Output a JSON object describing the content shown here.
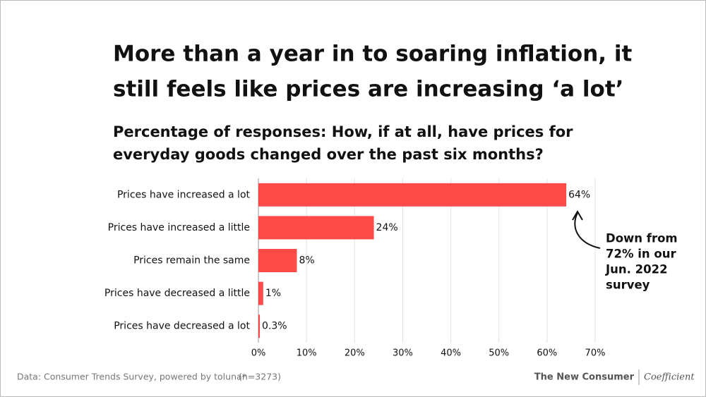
{
  "chart_data": {
    "type": "bar",
    "orientation": "horizontal",
    "title": [
      "More than a year in to soaring inflation, it",
      "still feels like prices are increasing ‘a lot’"
    ],
    "subtitle": [
      "Percentage of responses: How, if at all, have prices for",
      "everyday goods changed over the past six months?"
    ],
    "categories": [
      "Prices have increased a lot",
      "Prices have increased a little",
      "Prices remain the same",
      "Prices have decreased a little",
      "Prices have decreased a lot"
    ],
    "values": [
      64,
      24,
      8,
      1,
      0.3
    ],
    "value_labels": [
      "64%",
      "24%",
      "8%",
      "1%",
      "0.3%"
    ],
    "color": "#ff4a4a",
    "xlim": [
      0,
      70
    ],
    "xticks": [
      {
        "value": 0,
        "label": "0%"
      },
      {
        "value": 10,
        "label": "10%"
      },
      {
        "value": 20,
        "label": "20%"
      },
      {
        "value": 30,
        "label": "30%"
      },
      {
        "value": 40,
        "label": "40%"
      },
      {
        "value": 50,
        "label": "50%"
      },
      {
        "value": 60,
        "label": "60%"
      },
      {
        "value": 70,
        "label": "70%"
      }
    ],
    "grid": true,
    "annotation": [
      "Down from",
      "72% in our",
      "Jun. 2022",
      "survey"
    ],
    "source": "Data: Consumer Trends Survey, powered by toluna*",
    "sample": "(n=3273)",
    "brands": [
      "The New Consumer",
      "Coefficient"
    ]
  }
}
